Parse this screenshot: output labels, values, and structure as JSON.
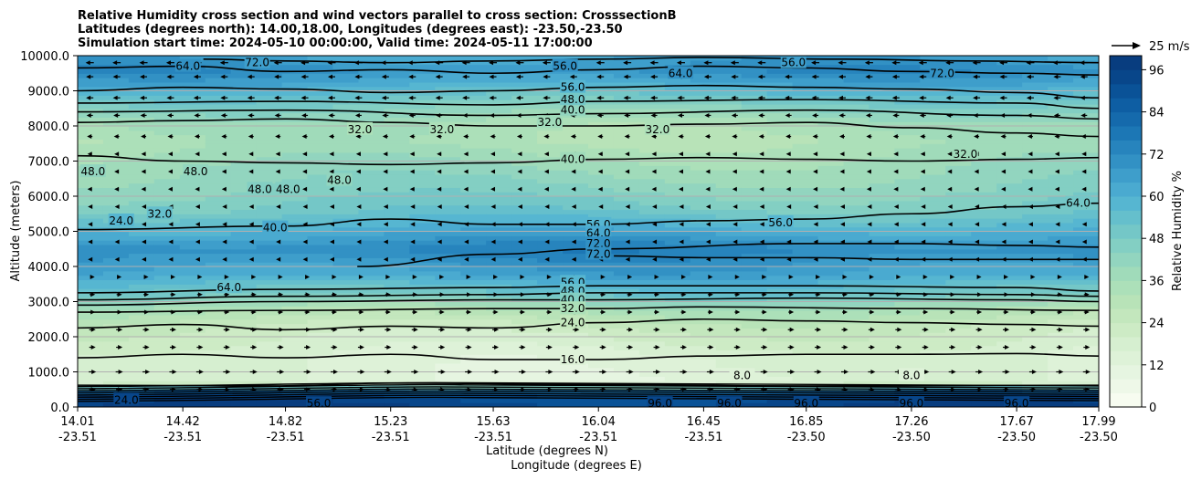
{
  "chart_data": {
    "type": "contourf",
    "title_lines": [
      "Relative Humidity cross section and wind vectors parallel to cross section: CrosssectionB",
      "Latitudes (degrees north): 14.00,18.00, Longitudes (degrees east): -23.50,-23.50",
      "Simulation start time: 2024-05-10 00:00:00, Valid time: 2024-05-11 17:00:00"
    ],
    "ylabel": "Altitude (meters)",
    "xlabel_lines": [
      "Latitude (degrees N)",
      "Longitude (degrees E)"
    ],
    "ylim": [
      0,
      10000
    ],
    "yticks": [
      0,
      1000,
      2000,
      3000,
      4000,
      5000,
      6000,
      7000,
      8000,
      9000,
      10000
    ],
    "ytick_labels": [
      "0.0",
      "1000.0",
      "2000.0",
      "3000.0",
      "4000.0",
      "5000.0",
      "6000.0",
      "7000.0",
      "8000.0",
      "9000.0",
      "10000.0"
    ],
    "xlim": [
      14.01,
      17.99
    ],
    "xticks": [
      {
        "lat": "14.01",
        "lon": "-23.51"
      },
      {
        "lat": "14.42",
        "lon": "-23.51"
      },
      {
        "lat": "14.82",
        "lon": "-23.51"
      },
      {
        "lat": "15.23",
        "lon": "-23.51"
      },
      {
        "lat": "15.63",
        "lon": "-23.51"
      },
      {
        "lat": "16.04",
        "lon": "-23.51"
      },
      {
        "lat": "16.45",
        "lon": "-23.51"
      },
      {
        "lat": "16.85",
        "lon": "-23.50"
      },
      {
        "lat": "17.26",
        "lon": "-23.50"
      },
      {
        "lat": "17.67",
        "lon": "-23.50"
      },
      {
        "lat": "17.99",
        "lon": "-23.50"
      }
    ],
    "colorbar": {
      "label": "Relative Humidity %",
      "ticks": [
        0,
        12,
        24,
        36,
        48,
        60,
        72,
        84,
        96
      ],
      "tick_labels": [
        "0",
        "12",
        "24",
        "36",
        "48",
        "60",
        "72",
        "84",
        "96"
      ],
      "levels": [
        0,
        4,
        8,
        12,
        16,
        20,
        24,
        28,
        32,
        36,
        40,
        44,
        48,
        52,
        56,
        60,
        64,
        68,
        72,
        76,
        80,
        84,
        88,
        92,
        96,
        100
      ],
      "colors": [
        "#f7fcf0",
        "#eef8e8",
        "#e6f5e1",
        "#def2d8",
        "#d6efd0",
        "#cdebc5",
        "#c3e7bd",
        "#b8e3b8",
        "#ace0b9",
        "#a0dbba",
        "#92d5bf",
        "#83cfc3",
        "#74c7c7",
        "#65bfcc",
        "#56b6d1",
        "#4aaad0",
        "#3e9ecb",
        "#3291c4",
        "#2784bd",
        "#1c77b5",
        "#156aac",
        "#0e5ea3",
        "#0a5297",
        "#08468a",
        "#083d7f"
      ]
    },
    "quiver_key": {
      "label": "25 m/s",
      "speed": 25
    },
    "rh_profile": [
      {
        "z": 0,
        "rh": 96
      },
      {
        "z": 400,
        "rh": 90
      },
      {
        "z": 700,
        "rh": 14
      },
      {
        "z": 1500,
        "rh": 16
      },
      {
        "z": 2300,
        "rh": 24
      },
      {
        "z": 2800,
        "rh": 34
      },
      {
        "z": 3200,
        "rh": 50
      },
      {
        "z": 3800,
        "rh": 64
      },
      {
        "z": 4500,
        "rh": 73
      },
      {
        "z": 5100,
        "rh": 60
      },
      {
        "z": 5600,
        "rh": 50
      },
      {
        "z": 6200,
        "rh": 44
      },
      {
        "z": 7000,
        "rh": 38
      },
      {
        "z": 7600,
        "rh": 33
      },
      {
        "z": 8100,
        "rh": 36
      },
      {
        "z": 8600,
        "rh": 46
      },
      {
        "z": 9200,
        "rh": 62
      },
      {
        "z": 9600,
        "rh": 70
      },
      {
        "z": 10000,
        "rh": 64
      }
    ],
    "contours": [
      {
        "level": 8,
        "label": "8.0",
        "points": [
          [
            14.01,
            620
          ],
          [
            14.8,
            600
          ],
          [
            15.23,
            680
          ],
          [
            16.04,
            640
          ],
          [
            16.85,
            600
          ],
          [
            17.99,
            620
          ]
        ]
      },
      {
        "level": 16,
        "label": "16.0",
        "points": [
          [
            14.01,
            1400
          ],
          [
            14.42,
            1500
          ],
          [
            14.82,
            1400
          ],
          [
            15.23,
            1500
          ],
          [
            15.63,
            1350
          ],
          [
            16.04,
            1350
          ],
          [
            16.45,
            1450
          ],
          [
            16.85,
            1500
          ],
          [
            17.26,
            1500
          ],
          [
            17.67,
            1520
          ],
          [
            17.99,
            1450
          ]
        ]
      },
      {
        "level": 24,
        "label": "24.0",
        "points": [
          [
            14.01,
            2250
          ],
          [
            14.42,
            2350
          ],
          [
            14.82,
            2200
          ],
          [
            15.23,
            2300
          ],
          [
            15.63,
            2250
          ],
          [
            16.04,
            2400
          ],
          [
            16.45,
            2500
          ],
          [
            16.85,
            2450
          ],
          [
            17.26,
            2400
          ],
          [
            17.67,
            2350
          ],
          [
            17.99,
            2300
          ]
        ]
      },
      {
        "level": 32,
        "label": "32.0",
        "points": [
          [
            14.01,
            2700
          ],
          [
            14.82,
            2750
          ],
          [
            15.63,
            2800
          ],
          [
            16.04,
            2800
          ],
          [
            16.45,
            2850
          ],
          [
            17.26,
            2800
          ],
          [
            17.99,
            2750
          ]
        ]
      },
      {
        "level": 40,
        "label": "40.0",
        "points": [
          [
            14.01,
            2900
          ],
          [
            14.82,
            3000
          ],
          [
            15.63,
            3050
          ],
          [
            16.04,
            3050
          ],
          [
            16.85,
            3100
          ],
          [
            17.67,
            3050
          ],
          [
            17.99,
            3000
          ]
        ]
      },
      {
        "level": 48,
        "label": "48.0",
        "points": [
          [
            14.01,
            3050
          ],
          [
            14.82,
            3150
          ],
          [
            15.63,
            3200
          ],
          [
            16.04,
            3250
          ],
          [
            16.85,
            3250
          ],
          [
            17.67,
            3200
          ],
          [
            17.99,
            3150
          ]
        ]
      },
      {
        "level": 56,
        "label": "56.0",
        "points": [
          [
            14.01,
            3250
          ],
          [
            14.82,
            3350
          ],
          [
            15.63,
            3400
          ],
          [
            16.04,
            3450
          ],
          [
            16.85,
            3450
          ],
          [
            17.67,
            3400
          ],
          [
            17.99,
            3300
          ]
        ]
      },
      {
        "level": 64,
        "label": "64.0",
        "points": [
          [
            15.1,
            4000
          ],
          [
            15.63,
            4350
          ],
          [
            16.04,
            4500
          ],
          [
            16.85,
            4650
          ],
          [
            17.26,
            4650
          ],
          [
            17.67,
            4600
          ],
          [
            17.99,
            4550
          ]
        ]
      },
      {
        "level": 72,
        "label": "72.0",
        "points": [
          [
            16.1,
            4300
          ],
          [
            16.45,
            4250
          ],
          [
            16.85,
            4250
          ],
          [
            17.26,
            4200
          ],
          [
            17.67,
            4200
          ],
          [
            17.99,
            4200
          ]
        ]
      },
      {
        "level": 56,
        "label": "56.0",
        "points": [
          [
            14.01,
            5050
          ],
          [
            14.82,
            5150
          ],
          [
            15.23,
            5350
          ],
          [
            15.63,
            5200
          ],
          [
            16.04,
            5200
          ],
          [
            16.45,
            5300
          ],
          [
            16.85,
            5350
          ],
          [
            17.26,
            5500
          ],
          [
            17.67,
            5700
          ],
          [
            17.99,
            5800
          ]
        ]
      },
      {
        "level": 40,
        "label": "40.0",
        "points": [
          [
            14.01,
            7150
          ],
          [
            14.42,
            7000
          ],
          [
            14.82,
            6950
          ],
          [
            15.23,
            6900
          ],
          [
            15.63,
            6950
          ],
          [
            16.04,
            7050
          ],
          [
            16.45,
            7100
          ],
          [
            16.85,
            7050
          ],
          [
            17.26,
            7000
          ],
          [
            17.67,
            7050
          ],
          [
            17.99,
            7100
          ]
        ]
      },
      {
        "level": 32,
        "label": "32.0",
        "points": [
          [
            14.01,
            8100
          ],
          [
            14.42,
            8150
          ],
          [
            14.82,
            8200
          ],
          [
            15.23,
            8100
          ],
          [
            15.63,
            8000
          ],
          [
            16.04,
            8000
          ],
          [
            16.45,
            8050
          ],
          [
            16.85,
            8100
          ],
          [
            17.26,
            7950
          ],
          [
            17.67,
            7800
          ],
          [
            17.99,
            7700
          ]
        ]
      },
      {
        "level": 40,
        "label": "40.0",
        "points": [
          [
            14.01,
            8400
          ],
          [
            14.82,
            8450
          ],
          [
            15.63,
            8300
          ],
          [
            16.04,
            8350
          ],
          [
            16.85,
            8450
          ],
          [
            17.67,
            8300
          ],
          [
            17.99,
            8200
          ]
        ]
      },
      {
        "level": 48,
        "label": "48.0",
        "points": [
          [
            14.01,
            8650
          ],
          [
            14.82,
            8700
          ],
          [
            15.63,
            8600
          ],
          [
            16.04,
            8700
          ],
          [
            16.85,
            8750
          ],
          [
            17.67,
            8650
          ],
          [
            17.99,
            8500
          ]
        ]
      },
      {
        "level": 56,
        "label": "56.0",
        "points": [
          [
            14.01,
            9000
          ],
          [
            14.42,
            9100
          ],
          [
            14.82,
            9050
          ],
          [
            15.23,
            8950
          ],
          [
            15.63,
            9000
          ],
          [
            16.04,
            9100
          ],
          [
            16.45,
            9150
          ],
          [
            16.85,
            9100
          ],
          [
            17.26,
            9050
          ],
          [
            17.67,
            8950
          ],
          [
            17.99,
            8800
          ]
        ]
      },
      {
        "level": 64,
        "label": "64.0",
        "points": [
          [
            14.01,
            9650
          ],
          [
            14.42,
            9700
          ],
          [
            14.82,
            9550
          ],
          [
            15.23,
            9600
          ],
          [
            15.63,
            9500
          ],
          [
            16.04,
            9600
          ],
          [
            16.45,
            9700
          ],
          [
            16.85,
            9650
          ],
          [
            17.26,
            9550
          ],
          [
            17.67,
            9500
          ],
          [
            17.99,
            9450
          ]
        ]
      },
      {
        "level": 72,
        "label": "72.0",
        "points": [
          [
            14.5,
            9900
          ],
          [
            14.82,
            9850
          ],
          [
            15.23,
            9800
          ],
          [
            15.63,
            9850
          ],
          [
            16.04,
            9900
          ],
          [
            16.45,
            9950
          ],
          [
            17.0,
            9900
          ],
          [
            17.5,
            9850
          ],
          [
            17.99,
            9800
          ]
        ]
      }
    ],
    "contour_labels": [
      {
        "text": "56.0",
        "x": 16.04,
        "z": 5200
      },
      {
        "text": "64.0",
        "x": 16.04,
        "z": 4950
      },
      {
        "text": "72.0",
        "x": 16.04,
        "z": 4650
      },
      {
        "text": "72.0",
        "x": 16.04,
        "z": 4350
      },
      {
        "text": "56.0",
        "x": 15.94,
        "z": 3550
      },
      {
        "text": "48.0",
        "x": 15.94,
        "z": 3300
      },
      {
        "text": "40.0",
        "x": 15.94,
        "z": 3050
      },
      {
        "text": "32.0",
        "x": 15.94,
        "z": 2800
      },
      {
        "text": "24.0",
        "x": 15.94,
        "z": 2400
      },
      {
        "text": "16.0",
        "x": 15.94,
        "z": 1350
      },
      {
        "text": "40.0",
        "x": 15.94,
        "z": 7050
      },
      {
        "text": "32.0",
        "x": 15.85,
        "z": 8100
      },
      {
        "text": "40.0",
        "x": 15.94,
        "z": 8450
      },
      {
        "text": "48.0",
        "x": 15.94,
        "z": 8750
      },
      {
        "text": "56.0",
        "x": 15.94,
        "z": 9100
      },
      {
        "text": "56.0",
        "x": 15.91,
        "z": 9700
      },
      {
        "text": "48.0",
        "x": 14.07,
        "z": 6700
      },
      {
        "text": "48.0",
        "x": 14.47,
        "z": 6700
      },
      {
        "text": "24.0",
        "x": 14.18,
        "z": 5300
      },
      {
        "text": "32.0",
        "x": 14.33,
        "z": 5500
      },
      {
        "text": "40.0",
        "x": 14.78,
        "z": 5100
      },
      {
        "text": "48.0",
        "x": 14.72,
        "z": 6200
      },
      {
        "text": "48.0",
        "x": 14.83,
        "z": 6200
      },
      {
        "text": "48.0",
        "x": 15.03,
        "z": 6450
      },
      {
        "text": "32.0",
        "x": 15.11,
        "z": 7900
      },
      {
        "text": "32.0",
        "x": 15.43,
        "z": 7900
      },
      {
        "text": "32.0",
        "x": 16.27,
        "z": 7900
      },
      {
        "text": "56.0",
        "x": 16.75,
        "z": 5250
      },
      {
        "text": "32.0",
        "x": 17.47,
        "z": 7200
      },
      {
        "text": "64.0",
        "x": 17.91,
        "z": 5800
      },
      {
        "text": "64.0",
        "x": 14.6,
        "z": 3400
      },
      {
        "text": "64.0",
        "x": 14.44,
        "z": 9700
      },
      {
        "text": "72.0",
        "x": 14.71,
        "z": 9800
      },
      {
        "text": "72.0",
        "x": 17.38,
        "z": 9500
      },
      {
        "text": "56.0",
        "x": 16.8,
        "z": 9800
      },
      {
        "text": "64.0",
        "x": 16.36,
        "z": 9500
      },
      {
        "text": "8.0",
        "x": 16.6,
        "z": 900
      },
      {
        "text": "8.0",
        "x": 17.26,
        "z": 900
      },
      {
        "text": "96.0",
        "x": 16.28,
        "z": 100
      },
      {
        "text": "96.0",
        "x": 16.55,
        "z": 100
      },
      {
        "text": "96.0",
        "x": 16.85,
        "z": 100
      },
      {
        "text": "96.0",
        "x": 17.26,
        "z": 100
      },
      {
        "text": "96.0",
        "x": 17.67,
        "z": 100
      },
      {
        "text": "24.0",
        "x": 14.2,
        "z": 200
      },
      {
        "text": "56.0",
        "x": 14.95,
        "z": 100
      }
    ],
    "wind_rows": [
      {
        "z": 9800,
        "u": -6
      },
      {
        "z": 9400,
        "u": -5
      },
      {
        "z": 8800,
        "u": -5
      },
      {
        "z": 8300,
        "u": -4
      },
      {
        "z": 7700,
        "u": -3
      },
      {
        "z": 7200,
        "u": -2
      },
      {
        "z": 6700,
        "u": -2
      },
      {
        "z": 6200,
        "u": -2
      },
      {
        "z": 5700,
        "u": -1
      },
      {
        "z": 5200,
        "u": -1
      },
      {
        "z": 4700,
        "u": -1
      },
      {
        "z": 4200,
        "u": -1
      },
      {
        "z": 3700,
        "u": 2
      },
      {
        "z": 3200,
        "u": 3
      },
      {
        "z": 2700,
        "u": 3
      },
      {
        "z": 2200,
        "u": 4
      },
      {
        "z": 1700,
        "u": 4
      },
      {
        "z": 1000,
        "u": 5
      },
      {
        "z": 500,
        "u": 4
      }
    ]
  }
}
